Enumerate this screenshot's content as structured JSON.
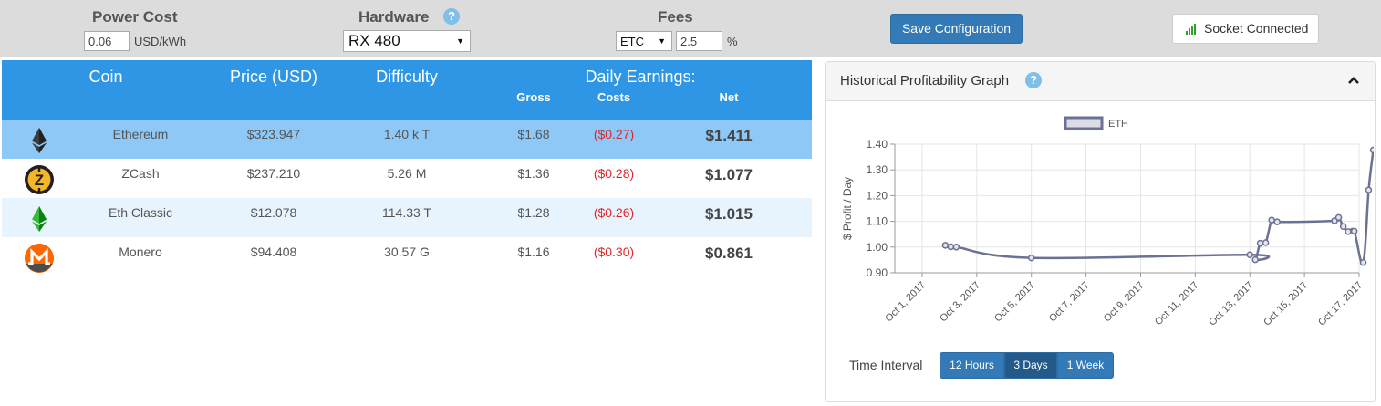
{
  "config": {
    "power_cost": {
      "label": "Power Cost",
      "value": "0.06",
      "unit": "USD/kWh"
    },
    "hardware": {
      "label": "Hardware",
      "selected": "RX 480",
      "help_icon": "question-circle-icon"
    },
    "fees": {
      "label": "Fees",
      "coin_selected": "ETC",
      "value": "2.5",
      "unit": "%"
    },
    "save_label": "Save Configuration",
    "socket_label": "Socket Connected",
    "socket_icon": "signal-bars-icon"
  },
  "table": {
    "headers": {
      "coin": "Coin",
      "price": "Price (USD)",
      "difficulty": "Difficulty",
      "earnings": "Daily Earnings:",
      "gross": "Gross",
      "costs": "Costs",
      "net": "Net"
    },
    "rows": [
      {
        "icon": "ethereum-icon",
        "name": "Ethereum",
        "price": "$323.947",
        "difficulty": "1.40 k T",
        "gross": "$1.68",
        "costs": "($0.27)",
        "net": "$1.411"
      },
      {
        "icon": "zcash-icon",
        "name": "ZCash",
        "price": "$237.210",
        "difficulty": "5.26 M",
        "gross": "$1.36",
        "costs": "($0.28)",
        "net": "$1.077"
      },
      {
        "icon": "ethereum-classic-icon",
        "name": "Eth Classic",
        "price": "$12.078",
        "difficulty": "114.33 T",
        "gross": "$1.28",
        "costs": "($0.26)",
        "net": "$1.015"
      },
      {
        "icon": "monero-icon",
        "name": "Monero",
        "price": "$94.408",
        "difficulty": "30.57 G",
        "gross": "$1.16",
        "costs": "($0.30)",
        "net": "$0.861"
      }
    ]
  },
  "graph": {
    "title": "Historical Profitability Graph",
    "collapse_icon": "chevron-up-icon",
    "interval_label": "Time Interval",
    "intervals": [
      {
        "label": "12 Hours",
        "active": false
      },
      {
        "label": "3 Days",
        "active": true
      },
      {
        "label": "1 Week",
        "active": false
      }
    ]
  },
  "chart_data": {
    "type": "line",
    "title": "",
    "xlabel": "",
    "ylabel": "$ Profit / Day",
    "ylim": [
      0.9,
      1.4
    ],
    "xlim": [
      0,
      17
    ],
    "yticks": [
      "0.90",
      "1.00",
      "1.10",
      "1.20",
      "1.30",
      "1.40"
    ],
    "xticks": [
      {
        "day": 1,
        "label": "Oct 1, 2017"
      },
      {
        "day": 3,
        "label": "Oct 3, 2017"
      },
      {
        "day": 5,
        "label": "Oct 5, 2017"
      },
      {
        "day": 7,
        "label": "Oct 7, 2017"
      },
      {
        "day": 9,
        "label": "Oct 9, 2017"
      },
      {
        "day": 11,
        "label": "Oct 11, 2017"
      },
      {
        "day": 13,
        "label": "Oct 13, 2017"
      },
      {
        "day": 15,
        "label": "Oct 15, 2017"
      },
      {
        "day": 17,
        "label": "Oct 17, 2017"
      }
    ],
    "grid": true,
    "legend": "top-center",
    "series": [
      {
        "name": "ETH",
        "color": "#6b7192",
        "points": [
          [
            1.85,
            1.007
          ],
          [
            2.05,
            1.001
          ],
          [
            2.25,
            1.0
          ],
          [
            5.0,
            0.958
          ],
          [
            13.0,
            0.97
          ],
          [
            13.2,
            0.951
          ],
          [
            13.38,
            1.015
          ],
          [
            13.58,
            1.017
          ],
          [
            13.8,
            1.105
          ],
          [
            14.0,
            1.098
          ],
          [
            16.1,
            1.102
          ],
          [
            16.25,
            1.115
          ],
          [
            16.42,
            1.08
          ],
          [
            16.6,
            1.06
          ],
          [
            16.82,
            1.062
          ],
          [
            17.15,
            0.94
          ],
          [
            17.35,
            1.222
          ],
          [
            17.52,
            1.377
          ]
        ]
      }
    ]
  }
}
